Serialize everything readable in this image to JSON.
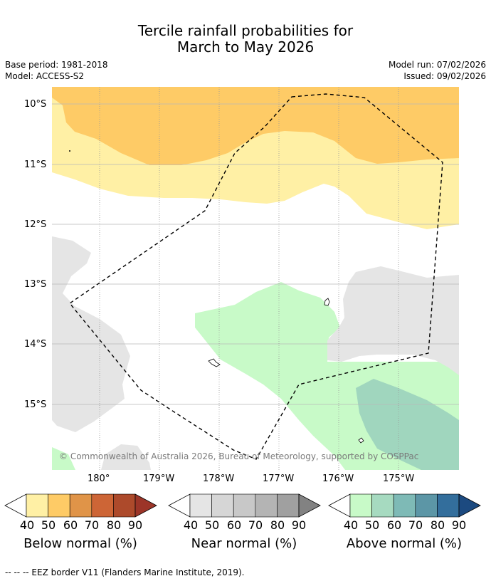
{
  "title": {
    "line1": "Tercile rainfall probabilities for",
    "line2": "March to May 2026"
  },
  "meta": {
    "base_period": "Base period: 1981-2018",
    "model": "Model: ACCESS-S2",
    "model_run": "Model run: 07/02/2026",
    "issued": "Issued: 09/02/2026"
  },
  "map": {
    "lat_labels": [
      "10°S",
      "11°S",
      "12°S",
      "13°S",
      "14°S",
      "15°S"
    ],
    "lon_labels": [
      "180°",
      "179°W",
      "178°W",
      "177°W",
      "176°W",
      "175°W"
    ],
    "credit": "© Commonwealth of Australia 2026, Bureau of Meteorology, supported by COSPPac",
    "colors": {
      "below_40": "#fff0a5",
      "below_50": "#fecb66",
      "near_40": "#e5e5e5",
      "above_40": "#c8fac8",
      "above_50": "#a0d6be"
    }
  },
  "colorbars": [
    {
      "title": "Below normal (%)",
      "ticks": [
        "40",
        "50",
        "60",
        "70",
        "80",
        "90"
      ],
      "colors": [
        "#fff0a5",
        "#fecb66",
        "#e09448",
        "#cd6536",
        "#ad4a2b",
        "#9c3528"
      ]
    },
    {
      "title": "Near normal (%)",
      "ticks": [
        "40",
        "50",
        "60",
        "70",
        "80",
        "90"
      ],
      "colors": [
        "#e5e5e5",
        "#d6d6d6",
        "#c8c8c8",
        "#b4b4b4",
        "#a0a0a0",
        "#828282"
      ]
    },
    {
      "title": "Above normal (%)",
      "ticks": [
        "40",
        "50",
        "60",
        "70",
        "80",
        "90"
      ],
      "colors": [
        "#c8fac8",
        "#a6dac0",
        "#7ebab6",
        "#5c96a6",
        "#336e9c",
        "#1c4a80"
      ]
    }
  ],
  "footnote": "--  --  -- EEZ border V11 (Flanders Marine Institute, 2019)."
}
